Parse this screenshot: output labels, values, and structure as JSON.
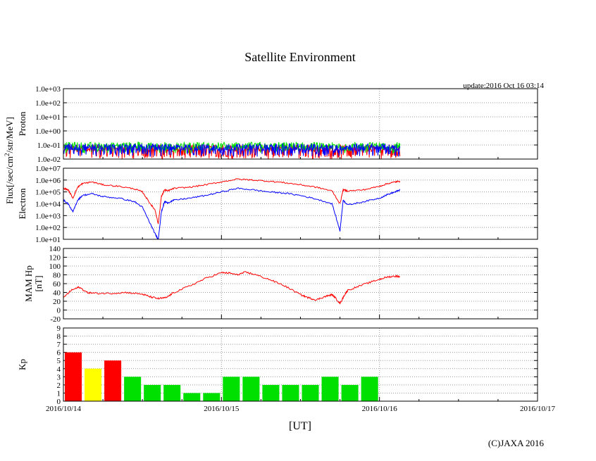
{
  "page": {
    "title": "Satellite Environment",
    "update": "update:2016 Oct 16 03:14",
    "xlabel": "[UT]",
    "copyright": "(C)JAXA 2016",
    "flux_label_pre": "Flux[/sec/cm",
    "flux_label_sup": "2",
    "flux_label_post": "/str/MeV]"
  },
  "colors": {
    "red": "#ff0000",
    "green": "#00e000",
    "blue": "#0000ff",
    "yellow": "#ffff00",
    "grid": "#999999"
  },
  "chart_data": [
    {
      "type": "line",
      "name": "proton",
      "ylabel": "Proton",
      "yscale": "log",
      "ylim": [
        0.01,
        1000
      ],
      "yticks": [
        "1.0e-02",
        "1.0e-01",
        "1.0e+00",
        "1.0e+01",
        "1.0e+02",
        "1.0e+03"
      ],
      "xlim": [
        0,
        3
      ],
      "x_end": 2.13,
      "series": [
        {
          "name": "proton-1",
          "color": "red",
          "baseline": 0.06,
          "min": 0.01
        },
        {
          "name": "proton-2",
          "color": "green",
          "baseline": 0.09,
          "min": 0.025
        },
        {
          "name": "proton-3",
          "color": "blue",
          "baseline": 0.07,
          "min": 0.015
        }
      ]
    },
    {
      "type": "line",
      "name": "electron",
      "ylabel": "Electron",
      "yscale": "log",
      "ylim": [
        10,
        10000000
      ],
      "yticks": [
        "1.0e+01",
        "1.0e+02",
        "1.0e+03",
        "1.0e+04",
        "1.0e+05",
        "1.0e+06",
        "1.0e+07"
      ],
      "xlim": [
        0,
        3
      ],
      "series": [
        {
          "name": "electron-high",
          "color": "red",
          "x": [
            0,
            0.03,
            0.06,
            0.09,
            0.12,
            0.18,
            0.25,
            0.35,
            0.45,
            0.5,
            0.55,
            0.58,
            0.6,
            0.62,
            0.64,
            0.66,
            0.7,
            0.8,
            0.9,
            1.0,
            1.1,
            1.2,
            1.3,
            1.4,
            1.5,
            1.6,
            1.7,
            1.75,
            1.77,
            1.8,
            1.9,
            2.0,
            2.05,
            2.1,
            2.13
          ],
          "y": [
            200000,
            150000,
            30000,
            250000,
            500000,
            700000,
            400000,
            300000,
            180000,
            100000,
            10000,
            3000,
            200,
            40000,
            150000,
            120000,
            200000,
            250000,
            400000,
            700000,
            1200000,
            1000000,
            800000,
            600000,
            400000,
            250000,
            120000,
            10000,
            150000,
            120000,
            150000,
            300000,
            500000,
            700000,
            800000
          ]
        },
        {
          "name": "electron-low",
          "color": "blue",
          "x": [
            0,
            0.03,
            0.06,
            0.09,
            0.12,
            0.18,
            0.25,
            0.35,
            0.45,
            0.5,
            0.55,
            0.58,
            0.6,
            0.62,
            0.64,
            0.66,
            0.7,
            0.8,
            0.9,
            1.0,
            1.1,
            1.2,
            1.3,
            1.4,
            1.5,
            1.6,
            1.7,
            1.75,
            1.77,
            1.8,
            1.9,
            2.0,
            2.05,
            2.1,
            2.13
          ],
          "y": [
            20000,
            10000,
            2000,
            20000,
            50000,
            70000,
            40000,
            30000,
            15000,
            5000,
            200,
            30,
            10,
            2000,
            15000,
            12000,
            20000,
            30000,
            50000,
            100000,
            200000,
            150000,
            100000,
            80000,
            50000,
            25000,
            10000,
            50,
            20000,
            8000,
            15000,
            30000,
            60000,
            100000,
            150000
          ]
        }
      ]
    },
    {
      "type": "line",
      "name": "mam-hp",
      "ylabel": "MAM Hp",
      "ylabel2": "[nT]",
      "ylim": [
        -20,
        140
      ],
      "yticks": [
        "-20",
        "0",
        "20",
        "40",
        "60",
        "80",
        "100",
        "120",
        "140"
      ],
      "xlim": [
        0,
        3
      ],
      "series": [
        {
          "name": "hp",
          "color": "red",
          "x": [
            0,
            0.05,
            0.1,
            0.15,
            0.2,
            0.3,
            0.4,
            0.5,
            0.55,
            0.6,
            0.65,
            0.7,
            0.8,
            0.9,
            1.0,
            1.05,
            1.1,
            1.15,
            1.2,
            1.3,
            1.4,
            1.5,
            1.55,
            1.6,
            1.65,
            1.7,
            1.72,
            1.75,
            1.78,
            1.8,
            1.9,
            2.0,
            2.05,
            2.1,
            2.13
          ],
          "y": [
            28,
            45,
            52,
            40,
            38,
            38,
            40,
            36,
            30,
            26,
            28,
            40,
            55,
            72,
            85,
            84,
            80,
            86,
            82,
            70,
            55,
            35,
            28,
            23,
            30,
            35,
            28,
            15,
            35,
            45,
            58,
            70,
            75,
            77,
            76
          ]
        }
      ]
    },
    {
      "type": "bar",
      "name": "kp",
      "ylabel": "Kp",
      "ylim": [
        0,
        9
      ],
      "yticks": [
        "0",
        "1",
        "2",
        "3",
        "4",
        "5",
        "6",
        "7",
        "8",
        "9"
      ],
      "xlim": [
        0,
        3
      ],
      "xticks": [
        "2016/10/14",
        "2016/10/15",
        "2016/10/16",
        "2016/10/17"
      ],
      "values": [
        6,
        4,
        5,
        3,
        2,
        2,
        1,
        1,
        3,
        3,
        2,
        2,
        2,
        3,
        2,
        3
      ],
      "bar_colors": [
        "red",
        "yellow",
        "red",
        "green",
        "green",
        "green",
        "green",
        "green",
        "green",
        "green",
        "green",
        "green",
        "green",
        "green",
        "green",
        "green"
      ]
    }
  ]
}
